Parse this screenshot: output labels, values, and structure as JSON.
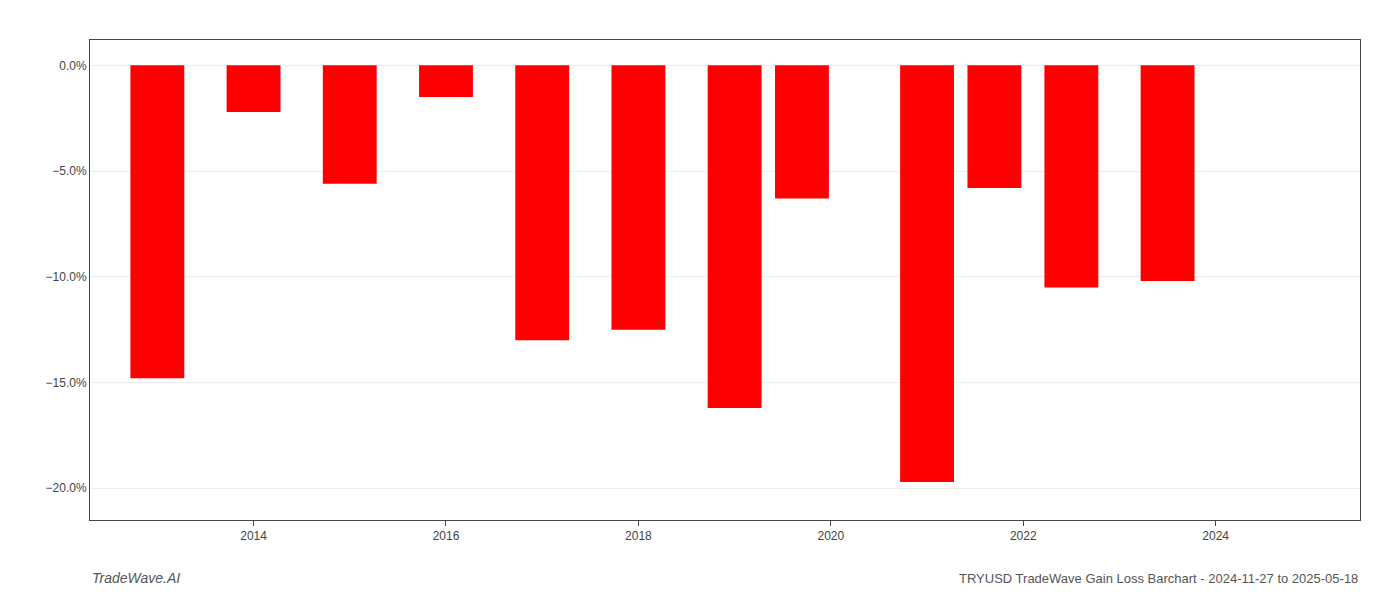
{
  "chart_data": {
    "type": "bar",
    "title": "TRYUSD TradeWave Gain Loss Barchart - 2024-11-27 to 2025-05-18",
    "annotations": [
      "TradeWave.AI"
    ],
    "x": [
      2013,
      2014,
      2015,
      2016,
      2017,
      2018,
      2019,
      2019.7,
      2021,
      2021.7,
      2022.5,
      2023.5
    ],
    "values": [
      -14.8,
      -2.2,
      -5.6,
      -1.5,
      -13.0,
      -12.5,
      -16.2,
      -6.3,
      -19.7,
      -5.8,
      -10.5,
      -10.2
    ],
    "color": "#ff0000",
    "xlim": [
      2012.3,
      2025.5
    ],
    "xticks": [
      2014,
      2016,
      2018,
      2020,
      2022,
      2024
    ],
    "ylim": [
      -21.5,
      1.2
    ],
    "yticks": [
      {
        "value": 0.0,
        "label": "0.0%"
      },
      {
        "value": -5.0,
        "label": "−5.0%"
      },
      {
        "value": -10.0,
        "label": "−10.0%"
      },
      {
        "value": -15.0,
        "label": "−15.0%"
      },
      {
        "value": -20.0,
        "label": "−20.0%"
      }
    ],
    "grid": true
  }
}
